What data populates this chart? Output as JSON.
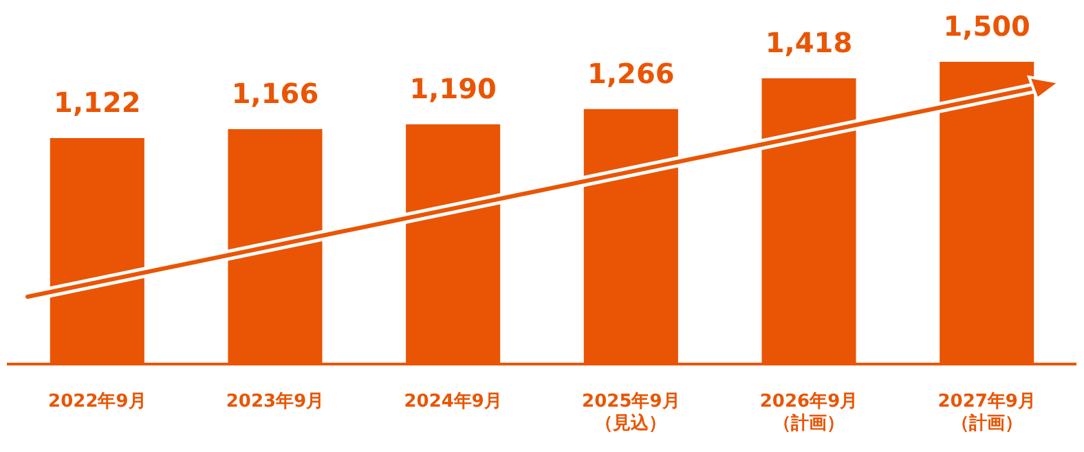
{
  "chart_data": {
    "type": "bar",
    "categories": [
      "2022年9月",
      "2023年9月",
      "2024年9月",
      "2025年9月（見込）",
      "2026年9月（計画）",
      "2027年9月（計画）"
    ],
    "value_labels": [
      "1,122",
      "1,166",
      "1,190",
      "1,266",
      "1,418",
      "1,500"
    ],
    "values": [
      1122,
      1166,
      1190,
      1266,
      1418,
      1500
    ],
    "color": "#e95504",
    "grid": false,
    "legend": false,
    "tick_labels": "x"
  }
}
